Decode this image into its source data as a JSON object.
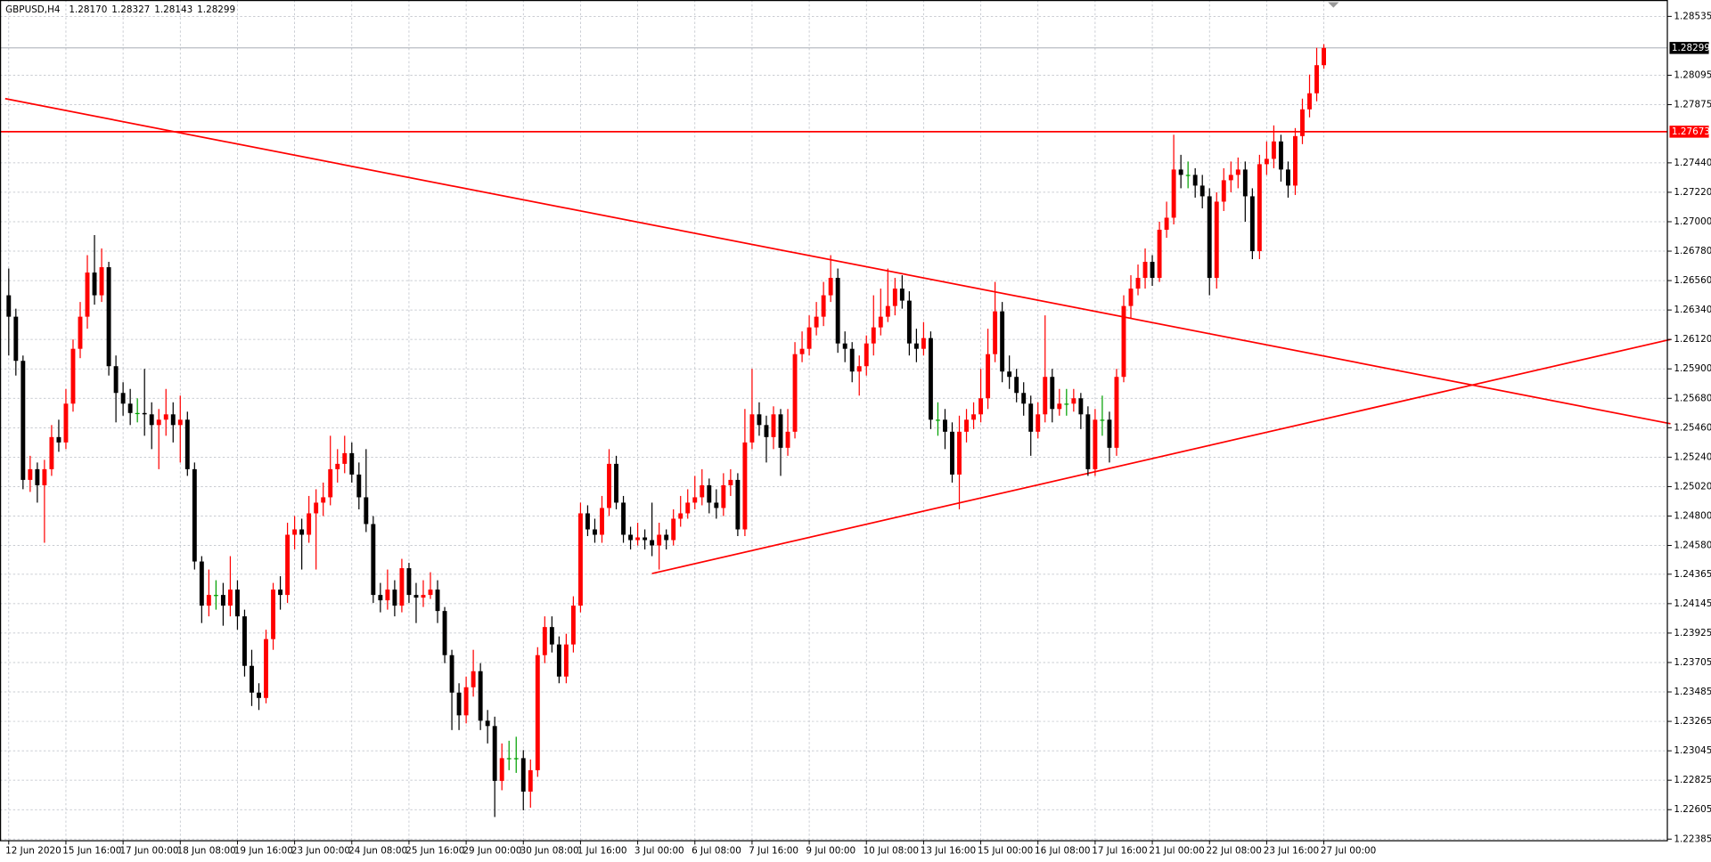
{
  "chart_data": {
    "type": "candlestick",
    "title": "GBPUSD,H4",
    "ohlc_labels": {
      "open": "1.28170",
      "high": "1.28327",
      "low": "1.28143",
      "close": "1.28299"
    },
    "up_color": "#ff0000",
    "down_color": "#000000",
    "doji_color": "#00a000",
    "grid": true,
    "ylim": [
      1.22385,
      1.28535
    ],
    "yticks": [
      1.28535,
      1.28095,
      1.27875,
      {
        "value": 1.2744,
        "label": "1.27440"
      },
      {
        "value": 1.2722,
        "label": "1.27220"
      },
      {
        "value": 1.27,
        "label": "1.27000"
      },
      {
        "value": 1.2678,
        "label": "1.26780"
      },
      {
        "value": 1.2656,
        "label": "1.26560"
      },
      {
        "value": 1.2634,
        "label": "1.26340"
      },
      {
        "value": 1.2612,
        "label": "1.26120"
      },
      {
        "value": 1.259,
        "label": "1.25900"
      },
      {
        "value": 1.2568,
        "label": "1.25680"
      },
      {
        "value": 1.2546,
        "label": "1.25460"
      },
      {
        "value": 1.2524,
        "label": "1.25240"
      },
      {
        "value": 1.2502,
        "label": "1.25020"
      },
      {
        "value": 1.248,
        "label": "1.24800"
      },
      {
        "value": 1.2458,
        "label": "1.24580"
      },
      1.24365,
      1.24145,
      1.23925,
      1.23705,
      1.23485,
      1.23265,
      1.23045,
      1.22825,
      1.22605,
      1.22385
    ],
    "xticks": [
      {
        "value": 0,
        "label": "12 Jun 2020"
      },
      {
        "value": 8,
        "label": "15 Jun 16:00"
      },
      {
        "value": 16,
        "label": "17 Jun 00:00"
      },
      {
        "value": 24,
        "label": "18 Jun 08:00"
      },
      {
        "value": 32,
        "label": "19 Jun 16:00"
      },
      {
        "value": 40,
        "label": "23 Jun 00:00"
      },
      {
        "value": 48,
        "label": "24 Jun 08:00"
      },
      {
        "value": 56,
        "label": "25 Jun 16:00"
      },
      {
        "value": 64,
        "label": "29 Jun 00:00"
      },
      {
        "value": 72,
        "label": "30 Jun 08:00"
      },
      {
        "value": 80,
        "label": "1 Jul 16:00"
      },
      {
        "value": 88,
        "label": "3 Jul 00:00"
      },
      {
        "value": 96,
        "label": "6 Jul 08:00"
      },
      {
        "value": 104,
        "label": "7 Jul 16:00"
      },
      {
        "value": 112,
        "label": "9 Jul 00:00"
      },
      {
        "value": 120,
        "label": "10 Jul 08:00"
      },
      {
        "value": 128,
        "label": "13 Jul 16:00"
      },
      {
        "value": 136,
        "label": "15 Jul 00:00"
      },
      {
        "value": 144,
        "label": "16 Jul 08:00"
      },
      {
        "value": 152,
        "label": "17 Jul 16:00"
      },
      {
        "value": 160,
        "label": "21 Jul 00:00"
      },
      {
        "value": 168,
        "label": "22 Jul 08:00"
      },
      {
        "value": 176,
        "label": "23 Jul 16:00"
      },
      {
        "value": 184,
        "label": "27 Jul 00:00"
      }
    ],
    "hlines": [
      {
        "value": 1.27673,
        "color": "#ff0000"
      }
    ],
    "trendlines": [
      {
        "x": [
          -0.5,
          232.5
        ],
        "y": [
          1.2792,
          1.2549
        ],
        "color": "#ff0000"
      },
      {
        "x": [
          90,
          232.5
        ],
        "y": [
          1.2437,
          1.2612
        ],
        "color": "#ff0000"
      }
    ],
    "candles": {
      "open": [
        1.2645,
        1.2629,
        1.2596,
        1.2507,
        1.2515,
        1.2503,
        1.2515,
        1.2539,
        1.2535,
        1.2564,
        1.2605,
        1.2629,
        1.2662,
        1.2645,
        1.2666,
        1.2592,
        1.2572,
        1.2564,
        1.2557,
        1.2557,
        1.2556,
        1.2548,
        1.2552,
        1.2556,
        1.2548,
        1.2552,
        1.2515,
        1.2446,
        1.2413,
        1.2421,
        1.2421,
        1.2413,
        1.2425,
        1.2405,
        1.2368,
        1.2348,
        1.2344,
        1.2388,
        1.2425,
        1.2421,
        1.2466,
        1.247,
        1.2466,
        1.2482,
        1.249,
        1.2494,
        1.2515,
        1.2519,
        1.2527,
        1.2511,
        1.2494,
        1.2474,
        1.2421,
        1.2417,
        1.2425,
        1.2413,
        1.2441,
        1.2421,
        1.2419,
        1.2421,
        1.2425,
        1.2409,
        1.2376,
        1.2348,
        1.2331,
        1.2352,
        1.2364,
        1.2327,
        1.2323,
        1.2282,
        1.2299,
        1.2299,
        1.2299,
        1.2274,
        1.229,
        1.2376,
        1.2397,
        1.2384,
        1.236,
        1.2384,
        1.2413,
        1.2482,
        1.247,
        1.2466,
        1.2486,
        1.2519,
        1.249,
        1.2466,
        1.2462,
        1.2464,
        1.2462,
        1.2458,
        1.2466,
        1.2462,
        1.2478,
        1.2482,
        1.249,
        1.2494,
        1.2503,
        1.249,
        1.2486,
        1.2503,
        1.2507,
        1.247,
        1.2535,
        1.2556,
        1.2548,
        1.2539,
        1.2556,
        1.2531,
        1.2543,
        1.2601,
        1.2605,
        1.2621,
        1.2629,
        1.2645,
        1.2658,
        1.2609,
        1.2605,
        1.2588,
        1.2592,
        1.2609,
        1.2621,
        1.2629,
        1.2637,
        1.265,
        1.2641,
        1.2609,
        1.2605,
        1.2613,
        1.2552,
        1.2552,
        1.2543,
        1.2511,
        1.2543,
        1.2552,
        1.2556,
        1.2568,
        1.2601,
        1.2633,
        1.2588,
        1.2584,
        1.2572,
        1.2564,
        1.2543,
        1.2556,
        1.2584,
        1.256,
        1.2564,
        1.2564,
        1.2568,
        1.2556,
        1.2515,
        1.2552,
        1.2552,
        1.2531,
        1.2584,
        1.2637,
        1.265,
        1.2658,
        1.267,
        1.2658,
        1.2694,
        1.2703,
        1.2739,
        1.2735,
        1.2735,
        1.2727,
        1.2719,
        1.2658,
        1.2715,
        1.2731,
        1.2735,
        1.2739,
        1.2719,
        1.2678,
        1.2743,
        1.2747,
        1.276,
        1.2739,
        1.2727,
        1.2764,
        1.2784,
        1.2796,
        1.2817
      ],
      "high": [
        1.2665,
        1.2635,
        1.26,
        1.2525,
        1.252,
        1.2522,
        1.2548,
        1.2552,
        1.2575,
        1.2612,
        1.264,
        1.2675,
        1.269,
        1.268,
        1.267,
        1.26,
        1.258,
        1.2575,
        1.2568,
        1.259,
        1.2565,
        1.256,
        1.2575,
        1.2565,
        1.257,
        1.2558,
        1.252,
        1.245,
        1.244,
        1.2432,
        1.243,
        1.245,
        1.2432,
        1.241,
        1.238,
        1.2355,
        1.2395,
        1.243,
        1.2435,
        1.2475,
        1.248,
        1.2478,
        1.2495,
        1.25,
        1.2505,
        1.254,
        1.253,
        1.254,
        1.2535,
        1.252,
        1.253,
        1.248,
        1.243,
        1.244,
        1.2432,
        1.2448,
        1.2445,
        1.243,
        1.2432,
        1.2438,
        1.2432,
        1.2412,
        1.238,
        1.2355,
        1.236,
        1.238,
        1.237,
        1.2335,
        1.233,
        1.231,
        1.2312,
        1.2315,
        1.2305,
        1.2298,
        1.2382,
        1.2405,
        1.2405,
        1.239,
        1.2392,
        1.242,
        1.249,
        1.2488,
        1.2478,
        1.2495,
        1.253,
        1.2525,
        1.2495,
        1.2472,
        1.2475,
        1.247,
        1.249,
        1.2475,
        1.247,
        1.2485,
        1.2495,
        1.25,
        1.251,
        1.2515,
        1.2508,
        1.25,
        1.2512,
        1.2515,
        1.2512,
        1.256,
        1.259,
        1.2565,
        1.2555,
        1.2562,
        1.256,
        1.256,
        1.261,
        1.2618,
        1.263,
        1.264,
        1.2655,
        1.2675,
        1.2665,
        1.2618,
        1.261,
        1.26,
        1.2615,
        1.2645,
        1.265,
        1.2665,
        1.2658,
        1.266,
        1.2648,
        1.262,
        1.2625,
        1.2618,
        1.2565,
        1.256,
        1.255,
        1.2555,
        1.256,
        1.2565,
        1.259,
        1.262,
        1.2655,
        1.264,
        1.26,
        1.259,
        1.258,
        1.257,
        1.2565,
        1.263,
        1.259,
        1.2575,
        1.2575,
        1.2575,
        1.2572,
        1.2562,
        1.256,
        1.257,
        1.2558,
        1.259,
        1.2645,
        1.266,
        1.2668,
        1.268,
        1.2675,
        1.27,
        1.2715,
        1.2765,
        1.275,
        1.2745,
        1.274,
        1.2735,
        1.2725,
        1.2722,
        1.274,
        1.2745,
        1.2748,
        1.2745,
        1.2725,
        1.275,
        1.276,
        1.2772,
        1.2765,
        1.2745,
        1.277,
        1.2792,
        1.281,
        1.283,
        1.28327
      ],
      "low": [
        1.26,
        1.2585,
        1.25,
        1.2498,
        1.249,
        1.246,
        1.251,
        1.2528,
        1.253,
        1.2558,
        1.2598,
        1.262,
        1.2638,
        1.264,
        1.2585,
        1.255,
        1.2555,
        1.2548,
        1.255,
        1.254,
        1.253,
        1.2515,
        1.254,
        1.2535,
        1.252,
        1.251,
        1.244,
        1.24,
        1.2405,
        1.241,
        1.2398,
        1.2405,
        1.2395,
        1.236,
        1.2338,
        1.2335,
        1.234,
        1.238,
        1.241,
        1.2415,
        1.2455,
        1.244,
        1.246,
        1.244,
        1.248,
        1.2488,
        1.2505,
        1.2512,
        1.2505,
        1.2485,
        1.2468,
        1.2415,
        1.2408,
        1.241,
        1.2405,
        1.2408,
        1.2415,
        1.24,
        1.2412,
        1.2418,
        1.24,
        1.237,
        1.232,
        1.232,
        1.2325,
        1.2345,
        1.232,
        1.231,
        1.2255,
        1.2275,
        1.229,
        1.2288,
        1.226,
        1.2262,
        1.2285,
        1.237,
        1.2378,
        1.2355,
        1.2355,
        1.2378,
        1.2408,
        1.2465,
        1.246,
        1.246,
        1.248,
        1.2485,
        1.246,
        1.2455,
        1.2458,
        1.2455,
        1.245,
        1.244,
        1.2455,
        1.2458,
        1.2472,
        1.2478,
        1.2485,
        1.2488,
        1.2482,
        1.2478,
        1.248,
        1.2495,
        1.2465,
        1.2465,
        1.253,
        1.254,
        1.252,
        1.253,
        1.251,
        1.2525,
        1.2538,
        1.2595,
        1.26,
        1.2615,
        1.2622,
        1.264,
        1.2602,
        1.2595,
        1.258,
        1.257,
        1.2585,
        1.26,
        1.2615,
        1.2625,
        1.263,
        1.2635,
        1.26,
        1.2595,
        1.26,
        1.2545,
        1.254,
        1.253,
        1.2505,
        1.2485,
        1.2535,
        1.2545,
        1.255,
        1.256,
        1.2595,
        1.258,
        1.2575,
        1.2565,
        1.2555,
        1.2525,
        1.2538,
        1.255,
        1.255,
        1.2555,
        1.2555,
        1.2558,
        1.2545,
        1.251,
        1.251,
        1.254,
        1.252,
        1.2525,
        1.258,
        1.2628,
        1.2645,
        1.265,
        1.2652,
        1.2655,
        1.2688,
        1.2698,
        1.2725,
        1.2725,
        1.2718,
        1.271,
        1.2645,
        1.265,
        1.2708,
        1.2722,
        1.2725,
        1.27,
        1.2672,
        1.2672,
        1.2735,
        1.274,
        1.273,
        1.2718,
        1.272,
        1.2758,
        1.2778,
        1.279,
        1.28143
      ],
      "close": [
        1.2629,
        1.2596,
        1.2507,
        1.2515,
        1.2503,
        1.2515,
        1.2539,
        1.2535,
        1.2564,
        1.2605,
        1.2629,
        1.2662,
        1.2645,
        1.2666,
        1.2592,
        1.2572,
        1.2564,
        1.2557,
        1.2557,
        1.2556,
        1.2548,
        1.2552,
        1.2556,
        1.2548,
        1.2552,
        1.2515,
        1.2446,
        1.2413,
        1.2421,
        1.2421,
        1.2413,
        1.2425,
        1.2405,
        1.2368,
        1.2348,
        1.2344,
        1.2388,
        1.2425,
        1.2421,
        1.2466,
        1.247,
        1.2466,
        1.2482,
        1.249,
        1.2494,
        1.2515,
        1.2519,
        1.2527,
        1.2511,
        1.2494,
        1.2474,
        1.2421,
        1.2417,
        1.2425,
        1.2413,
        1.2441,
        1.2421,
        1.2419,
        1.2421,
        1.2425,
        1.2409,
        1.2376,
        1.2348,
        1.2331,
        1.2352,
        1.2364,
        1.2327,
        1.2323,
        1.2282,
        1.2299,
        1.2299,
        1.2299,
        1.2274,
        1.229,
        1.2376,
        1.2397,
        1.2384,
        1.236,
        1.2384,
        1.2413,
        1.2482,
        1.247,
        1.2466,
        1.2486,
        1.2519,
        1.249,
        1.2466,
        1.2462,
        1.2464,
        1.2462,
        1.2458,
        1.2466,
        1.2462,
        1.2478,
        1.2482,
        1.249,
        1.2494,
        1.2503,
        1.249,
        1.2486,
        1.2503,
        1.2507,
        1.247,
        1.2535,
        1.2556,
        1.2548,
        1.2539,
        1.2556,
        1.2531,
        1.2543,
        1.2601,
        1.2605,
        1.2621,
        1.2629,
        1.2645,
        1.2658,
        1.2609,
        1.2605,
        1.2588,
        1.2592,
        1.2609,
        1.2621,
        1.2629,
        1.2637,
        1.265,
        1.2641,
        1.2609,
        1.2605,
        1.2613,
        1.2552,
        1.2552,
        1.2543,
        1.2511,
        1.2543,
        1.2552,
        1.2556,
        1.2568,
        1.2601,
        1.2633,
        1.2588,
        1.2584,
        1.2572,
        1.2564,
        1.2543,
        1.2556,
        1.2584,
        1.256,
        1.2564,
        1.2564,
        1.2568,
        1.2556,
        1.2515,
        1.2552,
        1.2552,
        1.2531,
        1.2584,
        1.2637,
        1.265,
        1.2658,
        1.267,
        1.2658,
        1.2694,
        1.2703,
        1.2739,
        1.2735,
        1.2735,
        1.2727,
        1.2719,
        1.2658,
        1.2715,
        1.2731,
        1.2735,
        1.2739,
        1.2719,
        1.2678,
        1.2743,
        1.2747,
        1.276,
        1.2739,
        1.2727,
        1.2764,
        1.2784,
        1.2796,
        1.2817,
        1.28299
      ]
    }
  }
}
